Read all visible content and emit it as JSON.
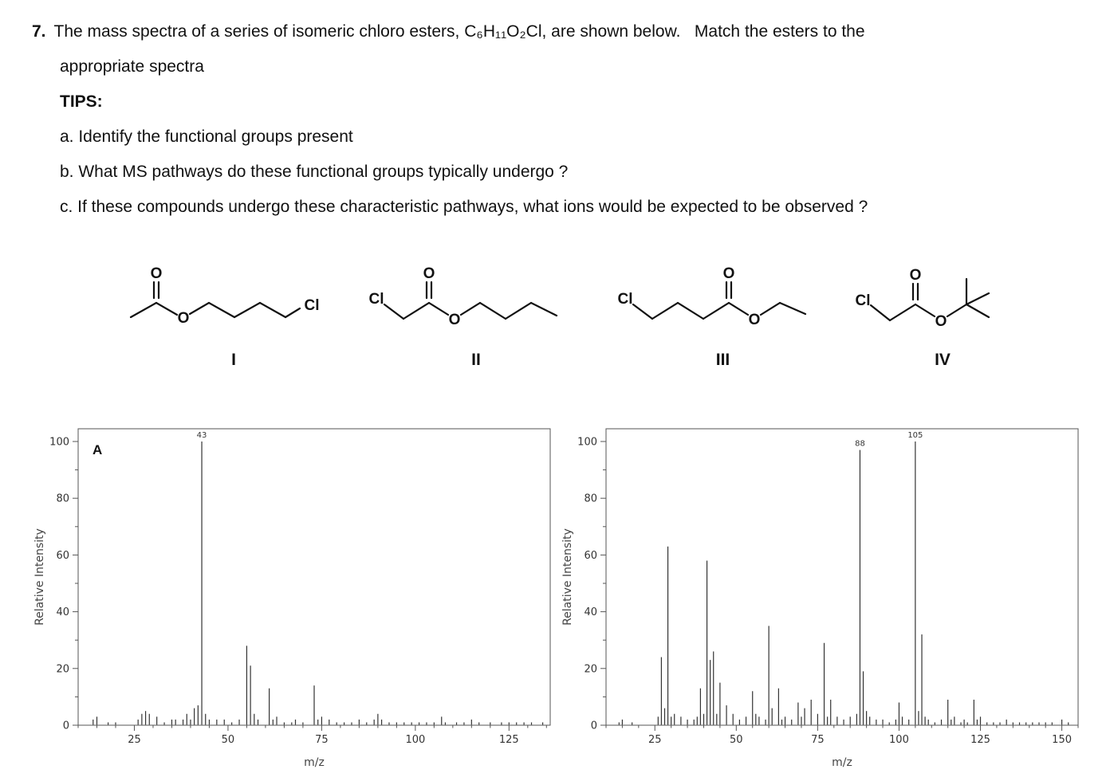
{
  "question": {
    "number": "7.",
    "line1": "The mass spectra of a series of isomeric chloro esters, C₆H₁₁O₂Cl, are shown below.   Match the esters to the",
    "line2": "appropriate spectra",
    "tips_heading": "TIPS:",
    "tips": [
      "a. Identify the functional groups present",
      "b. What MS pathways do these functional groups typically undergo ?",
      "c. If these compounds undergo these characteristic pathways, what ions would be expected to be observed ?"
    ]
  },
  "molecules": [
    {
      "label": "I",
      "atoms": {
        "carbonyl_o": "O",
        "ester_o": "O",
        "cl": "Cl"
      }
    },
    {
      "label": "II",
      "atoms": {
        "carbonyl_o": "O",
        "ester_o": "O",
        "cl": "Cl"
      }
    },
    {
      "label": "III",
      "atoms": {
        "carbonyl_o": "O",
        "ester_o": "O",
        "cl": "Cl"
      }
    },
    {
      "label": "IV",
      "atoms": {
        "carbonyl_o": "O",
        "ester_o": "O",
        "cl": "Cl"
      }
    }
  ],
  "chart_data": [
    {
      "type": "bar",
      "panel_label": "A",
      "xlabel": "m/z",
      "ylabel": "Relative Intensity",
      "xlim": [
        10,
        136
      ],
      "ylim": [
        0,
        100
      ],
      "x_major_ticks": [
        25,
        50,
        75,
        100,
        125
      ],
      "y_major_ticks": [
        0,
        20,
        40,
        60,
        80,
        100
      ],
      "labeled_peaks": [
        {
          "mz": 43,
          "label": "43"
        }
      ],
      "peaks": [
        [
          14,
          2
        ],
        [
          15,
          3
        ],
        [
          18,
          1
        ],
        [
          20,
          1
        ],
        [
          26,
          2
        ],
        [
          27,
          4
        ],
        [
          28,
          5
        ],
        [
          29,
          4
        ],
        [
          31,
          3
        ],
        [
          33,
          1
        ],
        [
          35,
          2
        ],
        [
          36,
          2
        ],
        [
          38,
          2
        ],
        [
          39,
          4
        ],
        [
          40,
          2
        ],
        [
          41,
          6
        ],
        [
          42,
          7
        ],
        [
          43,
          100
        ],
        [
          44,
          4
        ],
        [
          45,
          2
        ],
        [
          47,
          2
        ],
        [
          49,
          2
        ],
        [
          51,
          1
        ],
        [
          53,
          2
        ],
        [
          55,
          28
        ],
        [
          56,
          21
        ],
        [
          57,
          4
        ],
        [
          58,
          2
        ],
        [
          61,
          13
        ],
        [
          62,
          2
        ],
        [
          63,
          3
        ],
        [
          65,
          1
        ],
        [
          67,
          1
        ],
        [
          68,
          2
        ],
        [
          70,
          1
        ],
        [
          73,
          14
        ],
        [
          74,
          2
        ],
        [
          75,
          3
        ],
        [
          77,
          2
        ],
        [
          79,
          1
        ],
        [
          81,
          1
        ],
        [
          83,
          1
        ],
        [
          85,
          2
        ],
        [
          87,
          1
        ],
        [
          89,
          2
        ],
        [
          90,
          4
        ],
        [
          91,
          2
        ],
        [
          93,
          1
        ],
        [
          95,
          1
        ],
        [
          97,
          1
        ],
        [
          99,
          1
        ],
        [
          101,
          1
        ],
        [
          103,
          1
        ],
        [
          105,
          1
        ],
        [
          107,
          3
        ],
        [
          108,
          1
        ],
        [
          111,
          1
        ],
        [
          113,
          1
        ],
        [
          115,
          2
        ],
        [
          117,
          1
        ],
        [
          120,
          1
        ],
        [
          123,
          1
        ],
        [
          125,
          1
        ],
        [
          127,
          1
        ],
        [
          129,
          1
        ],
        [
          131,
          1
        ],
        [
          134,
          1
        ]
      ]
    },
    {
      "type": "bar",
      "panel_label": "",
      "xlabel": "m/z",
      "ylabel": "Relative Intensity",
      "xlim": [
        10,
        155
      ],
      "ylim": [
        0,
        100
      ],
      "x_major_ticks": [
        25,
        50,
        75,
        100,
        125,
        150
      ],
      "y_major_ticks": [
        0,
        20,
        40,
        60,
        80,
        100
      ],
      "labeled_peaks": [
        {
          "mz": 88,
          "label": "88"
        },
        {
          "mz": 105,
          "label": "105"
        }
      ],
      "peaks": [
        [
          14,
          1
        ],
        [
          15,
          2
        ],
        [
          18,
          1
        ],
        [
          26,
          3
        ],
        [
          27,
          24
        ],
        [
          28,
          6
        ],
        [
          29,
          63
        ],
        [
          30,
          3
        ],
        [
          31,
          4
        ],
        [
          33,
          3
        ],
        [
          35,
          2
        ],
        [
          37,
          2
        ],
        [
          38,
          3
        ],
        [
          39,
          13
        ],
        [
          40,
          4
        ],
        [
          41,
          58
        ],
        [
          42,
          23
        ],
        [
          43,
          26
        ],
        [
          44,
          4
        ],
        [
          45,
          15
        ],
        [
          47,
          7
        ],
        [
          49,
          4
        ],
        [
          51,
          2
        ],
        [
          53,
          3
        ],
        [
          55,
          12
        ],
        [
          56,
          4
        ],
        [
          57,
          3
        ],
        [
          59,
          2
        ],
        [
          60,
          35
        ],
        [
          61,
          6
        ],
        [
          63,
          13
        ],
        [
          64,
          2
        ],
        [
          65,
          3
        ],
        [
          67,
          2
        ],
        [
          69,
          8
        ],
        [
          70,
          3
        ],
        [
          71,
          6
        ],
        [
          73,
          9
        ],
        [
          75,
          4
        ],
        [
          77,
          29
        ],
        [
          78,
          3
        ],
        [
          79,
          9
        ],
        [
          81,
          3
        ],
        [
          83,
          2
        ],
        [
          85,
          3
        ],
        [
          87,
          4
        ],
        [
          88,
          97
        ],
        [
          89,
          19
        ],
        [
          90,
          5
        ],
        [
          91,
          3
        ],
        [
          93,
          2
        ],
        [
          95,
          2
        ],
        [
          97,
          1
        ],
        [
          99,
          2
        ],
        [
          100,
          8
        ],
        [
          101,
          3
        ],
        [
          103,
          2
        ],
        [
          105,
          100
        ],
        [
          106,
          5
        ],
        [
          107,
          32
        ],
        [
          108,
          3
        ],
        [
          109,
          2
        ],
        [
          111,
          1
        ],
        [
          113,
          2
        ],
        [
          115,
          9
        ],
        [
          116,
          2
        ],
        [
          117,
          3
        ],
        [
          119,
          1
        ],
        [
          120,
          2
        ],
        [
          121,
          1
        ],
        [
          123,
          9
        ],
        [
          124,
          2
        ],
        [
          125,
          3
        ],
        [
          127,
          1
        ],
        [
          129,
          1
        ],
        [
          131,
          1
        ],
        [
          133,
          2
        ],
        [
          135,
          1
        ],
        [
          137,
          1
        ],
        [
          139,
          1
        ],
        [
          141,
          1
        ],
        [
          143,
          1
        ],
        [
          145,
          1
        ],
        [
          147,
          1
        ],
        [
          150,
          2
        ],
        [
          152,
          1
        ]
      ]
    }
  ]
}
